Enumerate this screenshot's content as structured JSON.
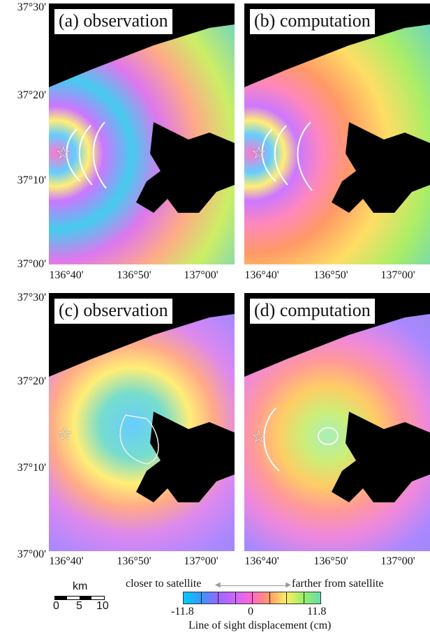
{
  "panels": [
    {
      "id": "a",
      "title": "(a) observation"
    },
    {
      "id": "b",
      "title": "(b) computation"
    },
    {
      "id": "c",
      "title": "(c) observation"
    },
    {
      "id": "d",
      "title": "(d) computation"
    }
  ],
  "lat_labels_top": [
    "37°30'",
    "37°20'",
    "37°10'",
    "37°00'"
  ],
  "lat_labels_bottom": [
    "37°30'",
    "37°20'",
    "37°10'",
    "37°00'"
  ],
  "lon_labels": [
    "136°40'",
    "136°50'",
    "137°00'"
  ],
  "epicenter_symbol": "☆",
  "scale_bar": {
    "unit": "km",
    "ticks": [
      "0",
      "5",
      "10"
    ]
  },
  "legend": {
    "closer_label": "closer to satellite",
    "farther_label": "farther from satellite",
    "min_label": "-11.8",
    "zero_label": "0",
    "max_label": "11.8",
    "caption": "Line of sight displacement (cm)",
    "colors": [
      "#00ccff",
      "#3399ff",
      "#9966ff",
      "#cc66ff",
      "#ff66cc",
      "#ff9966",
      "#ffee66",
      "#99ee66",
      "#66ddaa"
    ]
  }
}
